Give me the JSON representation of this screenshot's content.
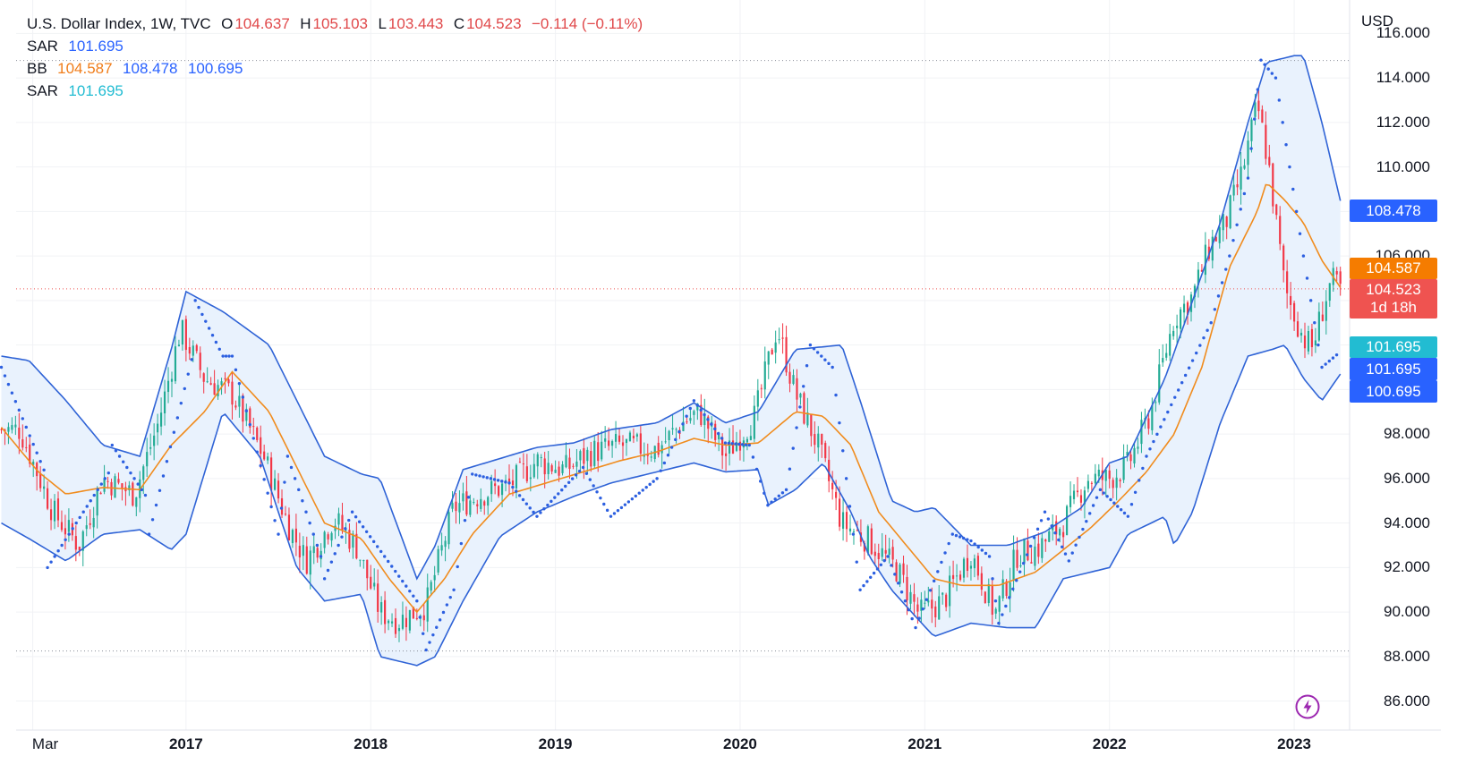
{
  "legend": {
    "title": "U.S. Dollar Index, 1W, TVC",
    "o_label": "O",
    "o_value": "104.637",
    "h_label": "H",
    "h_value": "105.103",
    "l_label": "L",
    "l_value": "103.443",
    "c_label": "C",
    "c_value": "104.523",
    "change": "−0.114 (−0.11%)",
    "sar1_label": "SAR",
    "sar1_value": "101.695",
    "bb_label": "BB",
    "bb_basis": "104.587",
    "bb_upper": "108.478",
    "bb_lower": "100.695",
    "sar2_label": "SAR",
    "sar2_value": "101.695"
  },
  "currency": "USD",
  "price_tags": {
    "bb_upper": "108.478",
    "bb_basis": "104.587",
    "last_price": "104.523",
    "countdown": "1d 18h",
    "sar2": "101.695",
    "sar1": "101.695",
    "bb_lower": "100.695"
  },
  "colors": {
    "up": "#22ab94",
    "down": "#f23645",
    "bands": "#2f63d6",
    "band_fill": "#e9f2fd",
    "basis": "#f08c1e",
    "sar": "#2c5fe0",
    "tag_blue": "#2962ff",
    "tag_orange": "#f57c00",
    "tag_red": "#ef5350",
    "tag_teal": "#22bcd2"
  },
  "chart_data": {
    "type": "candlestick",
    "title": "U.S. Dollar Index, 1W, TVC",
    "ylabel": "USD",
    "ylim": [
      84.7,
      117.5
    ],
    "y_ticks": [
      "116.000",
      "114.000",
      "112.000",
      "110.000",
      "108.000",
      "106.000",
      "104.000",
      "102.000",
      "100.000",
      "98.000",
      "96.000",
      "94.000",
      "92.000",
      "90.000",
      "88.000",
      "86.000"
    ],
    "x_ticks": [
      "Mar",
      "2017",
      "2018",
      "2019",
      "2020",
      "2021",
      "2022",
      "2023"
    ],
    "x_tick_years": [
      2016.17,
      2017.0,
      2018.0,
      2019.0,
      2020.0,
      2021.0,
      2022.0,
      2023.0
    ],
    "xlim": [
      2016.08,
      2023.3
    ],
    "reference_lines": {
      "high": 114.78,
      "low": 88.25,
      "last": 104.523
    },
    "anchors_close": [
      [
        2016.1,
        98.2
      ],
      [
        2016.28,
        94.5
      ],
      [
        2016.42,
        93.0
      ],
      [
        2016.55,
        96.0
      ],
      [
        2016.72,
        95.3
      ],
      [
        2016.85,
        98.5
      ],
      [
        2016.97,
        102.7
      ],
      [
        2017.1,
        100.5
      ],
      [
        2017.25,
        99.8
      ],
      [
        2017.42,
        97.0
      ],
      [
        2017.55,
        94.0
      ],
      [
        2017.65,
        92.3
      ],
      [
        2017.8,
        94.2
      ],
      [
        2017.92,
        93.0
      ],
      [
        2018.05,
        90.0
      ],
      [
        2018.15,
        89.6
      ],
      [
        2018.3,
        90.3
      ],
      [
        2018.45,
        94.7
      ],
      [
        2018.6,
        95.3
      ],
      [
        2018.75,
        95.7
      ],
      [
        2018.9,
        96.8
      ],
      [
        2019.05,
        96.4
      ],
      [
        2019.2,
        97.2
      ],
      [
        2019.35,
        97.5
      ],
      [
        2019.55,
        97.3
      ],
      [
        2019.7,
        98.6
      ],
      [
        2019.78,
        99.0
      ],
      [
        2019.92,
        97.0
      ],
      [
        2020.08,
        98.8
      ],
      [
        2020.2,
        102.8
      ],
      [
        2020.3,
        99.8
      ],
      [
        2020.42,
        97.5
      ],
      [
        2020.55,
        94.0
      ],
      [
        2020.7,
        93.2
      ],
      [
        2020.85,
        91.9
      ],
      [
        2020.97,
        89.9
      ],
      [
        2021.1,
        90.5
      ],
      [
        2021.25,
        92.7
      ],
      [
        2021.38,
        89.9
      ],
      [
        2021.5,
        92.6
      ],
      [
        2021.62,
        92.9
      ],
      [
        2021.75,
        94.0
      ],
      [
        2021.88,
        96.0
      ],
      [
        2022.0,
        96.0
      ],
      [
        2022.1,
        96.6
      ],
      [
        2022.22,
        98.9
      ],
      [
        2022.35,
        103.2
      ],
      [
        2022.45,
        104.2
      ],
      [
        2022.55,
        106.6
      ],
      [
        2022.63,
        107.5
      ],
      [
        2022.72,
        109.8
      ],
      [
        2022.8,
        112.8
      ],
      [
        2022.86,
        110.2
      ],
      [
        2022.95,
        104.5
      ],
      [
        2023.05,
        102.3
      ],
      [
        2023.1,
        101.9
      ],
      [
        2023.15,
        103.5
      ],
      [
        2023.2,
        104.9
      ],
      [
        2023.25,
        104.52
      ]
    ],
    "bb_upper_anchors": [
      [
        2016.0,
        101.5
      ],
      [
        2016.15,
        101.3
      ],
      [
        2016.35,
        99.5
      ],
      [
        2016.55,
        97.5
      ],
      [
        2016.75,
        97.0
      ],
      [
        2016.92,
        101.8
      ],
      [
        2017.0,
        104.4
      ],
      [
        2017.2,
        103.5
      ],
      [
        2017.45,
        102.0
      ],
      [
        2017.6,
        99.5
      ],
      [
        2017.75,
        97.0
      ],
      [
        2017.95,
        96.2
      ],
      [
        2018.05,
        96.0
      ],
      [
        2018.25,
        91.5
      ],
      [
        2018.35,
        93.0
      ],
      [
        2018.5,
        96.4
      ],
      [
        2018.7,
        96.9
      ],
      [
        2018.9,
        97.4
      ],
      [
        2019.1,
        97.6
      ],
      [
        2019.3,
        98.2
      ],
      [
        2019.55,
        98.5
      ],
      [
        2019.75,
        99.4
      ],
      [
        2019.92,
        98.5
      ],
      [
        2020.1,
        99.0
      ],
      [
        2020.3,
        101.8
      ],
      [
        2020.55,
        102.0
      ],
      [
        2020.65,
        99.5
      ],
      [
        2020.82,
        95.0
      ],
      [
        2020.95,
        94.5
      ],
      [
        2021.05,
        94.7
      ],
      [
        2021.25,
        93.0
      ],
      [
        2021.45,
        93.0
      ],
      [
        2021.65,
        93.6
      ],
      [
        2021.85,
        94.7
      ],
      [
        2022.0,
        96.7
      ],
      [
        2022.1,
        97.0
      ],
      [
        2022.3,
        100.5
      ],
      [
        2022.45,
        104.0
      ],
      [
        2022.6,
        107.5
      ],
      [
        2022.75,
        112.0
      ],
      [
        2022.85,
        114.7
      ],
      [
        2023.0,
        115.0
      ],
      [
        2023.05,
        115.0
      ],
      [
        2023.15,
        112.0
      ],
      [
        2023.25,
        108.478
      ]
    ],
    "bb_lower_anchors": [
      [
        2016.0,
        94.0
      ],
      [
        2016.15,
        93.3
      ],
      [
        2016.35,
        92.3
      ],
      [
        2016.55,
        93.5
      ],
      [
        2016.75,
        93.7
      ],
      [
        2016.92,
        92.8
      ],
      [
        2017.0,
        93.5
      ],
      [
        2017.2,
        99.0
      ],
      [
        2017.4,
        97.0
      ],
      [
        2017.6,
        92.0
      ],
      [
        2017.75,
        90.5
      ],
      [
        2017.95,
        90.8
      ],
      [
        2018.05,
        88.0
      ],
      [
        2018.25,
        87.6
      ],
      [
        2018.35,
        88.0
      ],
      [
        2018.5,
        90.5
      ],
      [
        2018.7,
        93.4
      ],
      [
        2018.9,
        94.5
      ],
      [
        2019.1,
        95.2
      ],
      [
        2019.3,
        95.8
      ],
      [
        2019.55,
        96.3
      ],
      [
        2019.75,
        96.7
      ],
      [
        2019.92,
        96.3
      ],
      [
        2020.1,
        96.4
      ],
      [
        2020.15,
        94.8
      ],
      [
        2020.3,
        95.5
      ],
      [
        2020.45,
        96.7
      ],
      [
        2020.6,
        94.5
      ],
      [
        2020.7,
        92.5
      ],
      [
        2020.82,
        91.0
      ],
      [
        2020.95,
        89.8
      ],
      [
        2021.05,
        88.9
      ],
      [
        2021.25,
        89.5
      ],
      [
        2021.45,
        89.3
      ],
      [
        2021.6,
        89.3
      ],
      [
        2021.75,
        91.5
      ],
      [
        2021.9,
        91.8
      ],
      [
        2022.0,
        92.0
      ],
      [
        2022.1,
        93.5
      ],
      [
        2022.3,
        94.3
      ],
      [
        2022.35,
        93.0
      ],
      [
        2022.45,
        94.5
      ],
      [
        2022.6,
        98.5
      ],
      [
        2022.75,
        101.5
      ],
      [
        2022.88,
        101.8
      ],
      [
        2022.95,
        102.0
      ],
      [
        2023.05,
        100.5
      ],
      [
        2023.15,
        99.5
      ],
      [
        2023.25,
        100.695
      ]
    ],
    "basis_anchors": [
      [
        2016.0,
        98.3
      ],
      [
        2016.2,
        96.3
      ],
      [
        2016.35,
        95.3
      ],
      [
        2016.55,
        95.6
      ],
      [
        2016.75,
        95.5
      ],
      [
        2016.92,
        97.5
      ],
      [
        2017.1,
        99.0
      ],
      [
        2017.25,
        100.8
      ],
      [
        2017.45,
        99.0
      ],
      [
        2017.6,
        96.5
      ],
      [
        2017.75,
        94.0
      ],
      [
        2017.95,
        93.3
      ],
      [
        2018.1,
        91.5
      ],
      [
        2018.25,
        90.0
      ],
      [
        2018.4,
        91.5
      ],
      [
        2018.55,
        93.5
      ],
      [
        2018.75,
        95.3
      ],
      [
        2018.95,
        95.8
      ],
      [
        2019.15,
        96.3
      ],
      [
        2019.35,
        96.8
      ],
      [
        2019.55,
        97.2
      ],
      [
        2019.75,
        97.8
      ],
      [
        2019.92,
        97.5
      ],
      [
        2020.1,
        97.6
      ],
      [
        2020.3,
        99.0
      ],
      [
        2020.45,
        98.8
      ],
      [
        2020.6,
        97.5
      ],
      [
        2020.75,
        94.5
      ],
      [
        2020.9,
        93.0
      ],
      [
        2021.05,
        91.5
      ],
      [
        2021.2,
        91.2
      ],
      [
        2021.4,
        91.2
      ],
      [
        2021.6,
        91.8
      ],
      [
        2021.75,
        92.8
      ],
      [
        2021.9,
        93.8
      ],
      [
        2022.05,
        95.0
      ],
      [
        2022.2,
        96.3
      ],
      [
        2022.35,
        98.0
      ],
      [
        2022.5,
        101.0
      ],
      [
        2022.65,
        105.5
      ],
      [
        2022.8,
        108.0
      ],
      [
        2022.85,
        109.3
      ],
      [
        2022.95,
        108.5
      ],
      [
        2023.05,
        107.5
      ],
      [
        2023.15,
        105.8
      ],
      [
        2023.25,
        104.587
      ]
    ],
    "sar_anchors": [
      [
        2016.0,
        101.0
      ],
      [
        2016.25,
        96.0
      ],
      [
        2016.25,
        92.0
      ],
      [
        2016.6,
        96.5
      ],
      [
        2016.6,
        97.5
      ],
      [
        2016.8,
        95.0
      ],
      [
        2016.8,
        93.5
      ],
      [
        2017.05,
        102.0
      ],
      [
        2017.05,
        104.0
      ],
      [
        2017.2,
        101.5
      ],
      [
        2017.25,
        101.5
      ],
      [
        2017.5,
        93.5
      ],
      [
        2017.55,
        97.0
      ],
      [
        2017.75,
        92.0
      ],
      [
        2017.75,
        91.5
      ],
      [
        2017.9,
        94.5
      ],
      [
        2017.9,
        94.5
      ],
      [
        2018.25,
        90.5
      ],
      [
        2018.3,
        88.3
      ],
      [
        2018.45,
        91.0
      ],
      [
        2018.55,
        96.2
      ],
      [
        2018.75,
        95.8
      ],
      [
        2018.9,
        94.3
      ],
      [
        2019.15,
        96.5
      ],
      [
        2019.3,
        94.3
      ],
      [
        2019.55,
        96.0
      ],
      [
        2019.75,
        99.5
      ],
      [
        2019.92,
        97.6
      ],
      [
        2020.05,
        97.5
      ],
      [
        2020.15,
        94.8
      ],
      [
        2020.25,
        95.5
      ],
      [
        2020.38,
        102.0
      ],
      [
        2020.5,
        101.0
      ],
      [
        2020.65,
        91.0
      ],
      [
        2020.8,
        92.5
      ],
      [
        2020.95,
        89.3
      ],
      [
        2021.15,
        93.5
      ],
      [
        2021.25,
        93.2
      ],
      [
        2021.35,
        92.5
      ],
      [
        2021.4,
        89.5
      ],
      [
        2021.65,
        94.5
      ],
      [
        2021.78,
        92.3
      ],
      [
        2021.95,
        95.5
      ],
      [
        2022.1,
        94.3
      ],
      [
        2022.2,
        97.0
      ],
      [
        2022.45,
        101.3
      ],
      [
        2022.55,
        103.0
      ],
      [
        2022.65,
        106.0
      ],
      [
        2022.75,
        109.5
      ],
      [
        2022.82,
        114.8
      ],
      [
        2022.9,
        114.0
      ],
      [
        2023.05,
        106.0
      ],
      [
        2023.15,
        101.0
      ],
      [
        2023.25,
        101.695
      ]
    ]
  }
}
